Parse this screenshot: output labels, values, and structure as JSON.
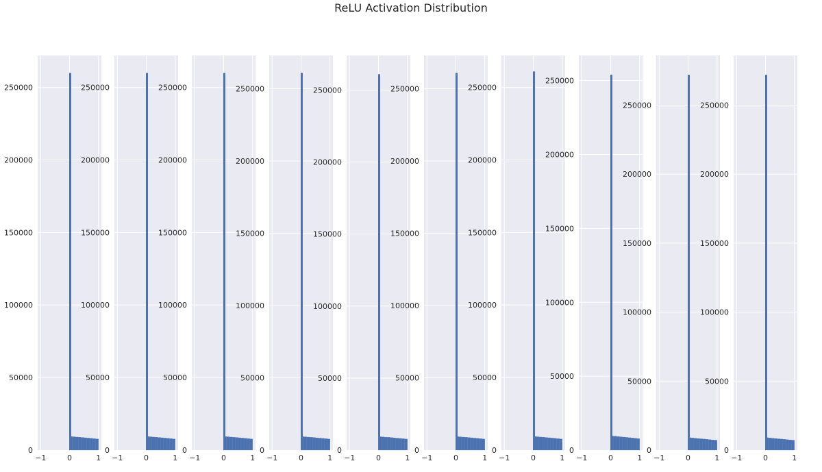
{
  "figure": {
    "title": "ReLU Activation Distribution"
  },
  "style": {
    "axes_bg": "#eaeaf2",
    "grid_color": "#ffffff",
    "bar_color": "#4c72b0",
    "text_color": "#262626"
  },
  "chart_data": [
    {
      "type": "bar",
      "title": "",
      "xlabel": "",
      "ylabel": "",
      "grid": true,
      "xlim": [
        -1.1,
        1.1
      ],
      "ylim": [
        0,
        272000
      ],
      "xticks": [
        "−1",
        "0",
        "1"
      ],
      "yticks": [
        0,
        50000,
        100000,
        150000,
        200000,
        250000
      ],
      "zero_bin_count": 260000,
      "bins_x": [
        0.05,
        0.15,
        0.25,
        0.35,
        0.45,
        0.55,
        0.65,
        0.75,
        0.85,
        0.95
      ],
      "bins_y": [
        9300,
        9200,
        9000,
        8900,
        8700,
        8500,
        8300,
        8100,
        7900,
        7700
      ]
    },
    {
      "type": "bar",
      "title": "",
      "xlabel": "",
      "ylabel": "",
      "grid": true,
      "xlim": [
        -1.1,
        1.1
      ],
      "ylim": [
        0,
        272000
      ],
      "xticks": [
        "−1",
        "0",
        "1"
      ],
      "yticks": [
        0,
        50000,
        100000,
        150000,
        200000,
        250000
      ],
      "zero_bin_count": 260000,
      "bins_x": [
        0.05,
        0.15,
        0.25,
        0.35,
        0.45,
        0.55,
        0.65,
        0.75,
        0.85,
        0.95
      ],
      "bins_y": [
        9300,
        9200,
        9000,
        8900,
        8700,
        8500,
        8300,
        8100,
        7900,
        7700
      ]
    },
    {
      "type": "bar",
      "title": "",
      "xlabel": "",
      "ylabel": "",
      "grid": true,
      "xlim": [
        -1.1,
        1.1
      ],
      "ylim": [
        0,
        272000
      ],
      "xticks": [
        "−1",
        "0",
        "1"
      ],
      "yticks": [
        0,
        50000,
        100000,
        150000,
        200000,
        250000
      ],
      "zero_bin_count": 260000,
      "bins_x": [
        0.05,
        0.15,
        0.25,
        0.35,
        0.45,
        0.55,
        0.65,
        0.75,
        0.85,
        0.95
      ],
      "bins_y": [
        9300,
        9200,
        9000,
        8900,
        8700,
        8500,
        8300,
        8100,
        7900,
        7700
      ]
    },
    {
      "type": "bar",
      "title": "",
      "xlabel": "",
      "ylabel": "",
      "grid": true,
      "xlim": [
        -1.1,
        1.1
      ],
      "ylim": [
        0,
        273000
      ],
      "xticks": [
        "−1",
        "0",
        "1"
      ],
      "yticks": [
        0,
        50000,
        100000,
        150000,
        200000,
        250000
      ],
      "zero_bin_count": 261000,
      "bins_x": [
        0.05,
        0.15,
        0.25,
        0.35,
        0.45,
        0.55,
        0.65,
        0.75,
        0.85,
        0.95
      ],
      "bins_y": [
        9300,
        9200,
        9000,
        8900,
        8700,
        8500,
        8300,
        8100,
        7900,
        7700
      ]
    },
    {
      "type": "bar",
      "title": "",
      "xlabel": "",
      "ylabel": "",
      "grid": true,
      "xlim": [
        -1.1,
        1.1
      ],
      "ylim": [
        0,
        274000
      ],
      "xticks": [
        "−1",
        "0",
        "1"
      ],
      "yticks": [
        0,
        50000,
        100000,
        150000,
        200000,
        250000
      ],
      "zero_bin_count": 261000,
      "bins_x": [
        0.05,
        0.15,
        0.25,
        0.35,
        0.45,
        0.55,
        0.65,
        0.75,
        0.85,
        0.95
      ],
      "bins_y": [
        9300,
        9200,
        9000,
        8900,
        8700,
        8500,
        8300,
        8100,
        7900,
        7700
      ]
    },
    {
      "type": "bar",
      "title": "",
      "xlabel": "",
      "ylabel": "",
      "grid": true,
      "xlim": [
        -1.1,
        1.1
      ],
      "ylim": [
        0,
        273000
      ],
      "xticks": [
        "−1",
        "0",
        "1"
      ],
      "yticks": [
        0,
        50000,
        100000,
        150000,
        200000,
        250000
      ],
      "zero_bin_count": 261000,
      "bins_x": [
        0.05,
        0.15,
        0.25,
        0.35,
        0.45,
        0.55,
        0.65,
        0.75,
        0.85,
        0.95
      ],
      "bins_y": [
        9300,
        9200,
        9000,
        8900,
        8700,
        8500,
        8300,
        8100,
        7900,
        7700
      ]
    },
    {
      "type": "bar",
      "title": "",
      "xlabel": "",
      "ylabel": "",
      "grid": true,
      "xlim": [
        -1.1,
        1.1
      ],
      "ylim": [
        0,
        272000
      ],
      "xticks": [
        "−1",
        "0",
        "1"
      ],
      "yticks": [
        0,
        50000,
        100000,
        150000,
        200000,
        250000
      ],
      "zero_bin_count": 261000,
      "bins_x": [
        0.05,
        0.15,
        0.25,
        0.35,
        0.45,
        0.55,
        0.65,
        0.75,
        0.85,
        0.95
      ],
      "bins_y": [
        9300,
        9200,
        9000,
        8900,
        8700,
        8500,
        8300,
        8100,
        7900,
        7700
      ]
    },
    {
      "type": "bar",
      "title": "",
      "xlabel": "",
      "ylabel": "",
      "grid": true,
      "xlim": [
        -1.1,
        1.1
      ],
      "ylim": [
        0,
        267000
      ],
      "xticks": [
        "−1",
        "0",
        "1"
      ],
      "yticks": [
        0,
        50000,
        100000,
        150000,
        200000,
        250000
      ],
      "zero_bin_count": 254000,
      "bins_x": [
        0.05,
        0.15,
        0.25,
        0.35,
        0.45,
        0.55,
        0.65,
        0.75,
        0.85,
        0.95
      ],
      "bins_y": [
        9500,
        9400,
        9200,
        9000,
        8800,
        8600,
        8400,
        8200,
        8000,
        7800
      ]
    },
    {
      "type": "bar",
      "title": "",
      "xlabel": "",
      "ylabel": "",
      "grid": true,
      "xlim": [
        -1.1,
        1.1
      ],
      "ylim": [
        0,
        286000
      ],
      "xticks": [
        "−1",
        "0",
        "1"
      ],
      "yticks": [
        0,
        50000,
        100000,
        150000,
        200000,
        250000
      ],
      "zero_bin_count": 272000,
      "bins_x": [
        0.05,
        0.15,
        0.25,
        0.35,
        0.45,
        0.55,
        0.65,
        0.75,
        0.85,
        0.95
      ],
      "bins_y": [
        9000,
        8800,
        8600,
        8400,
        8200,
        8000,
        7800,
        7600,
        7400,
        7200
      ]
    },
    {
      "type": "bar",
      "title": "",
      "xlabel": "",
      "ylabel": "",
      "grid": true,
      "xlim": [
        -1.1,
        1.1
      ],
      "ylim": [
        0,
        286000
      ],
      "xticks": [
        "−1",
        "0",
        "1"
      ],
      "yticks": [
        0,
        50000,
        100000,
        150000,
        200000,
        250000
      ],
      "zero_bin_count": 272000,
      "bins_x": [
        0.05,
        0.15,
        0.25,
        0.35,
        0.45,
        0.55,
        0.65,
        0.75,
        0.85,
        0.95
      ],
      "bins_y": [
        9000,
        8800,
        8600,
        8400,
        8200,
        8000,
        7800,
        7600,
        7400,
        7200
      ]
    }
  ]
}
